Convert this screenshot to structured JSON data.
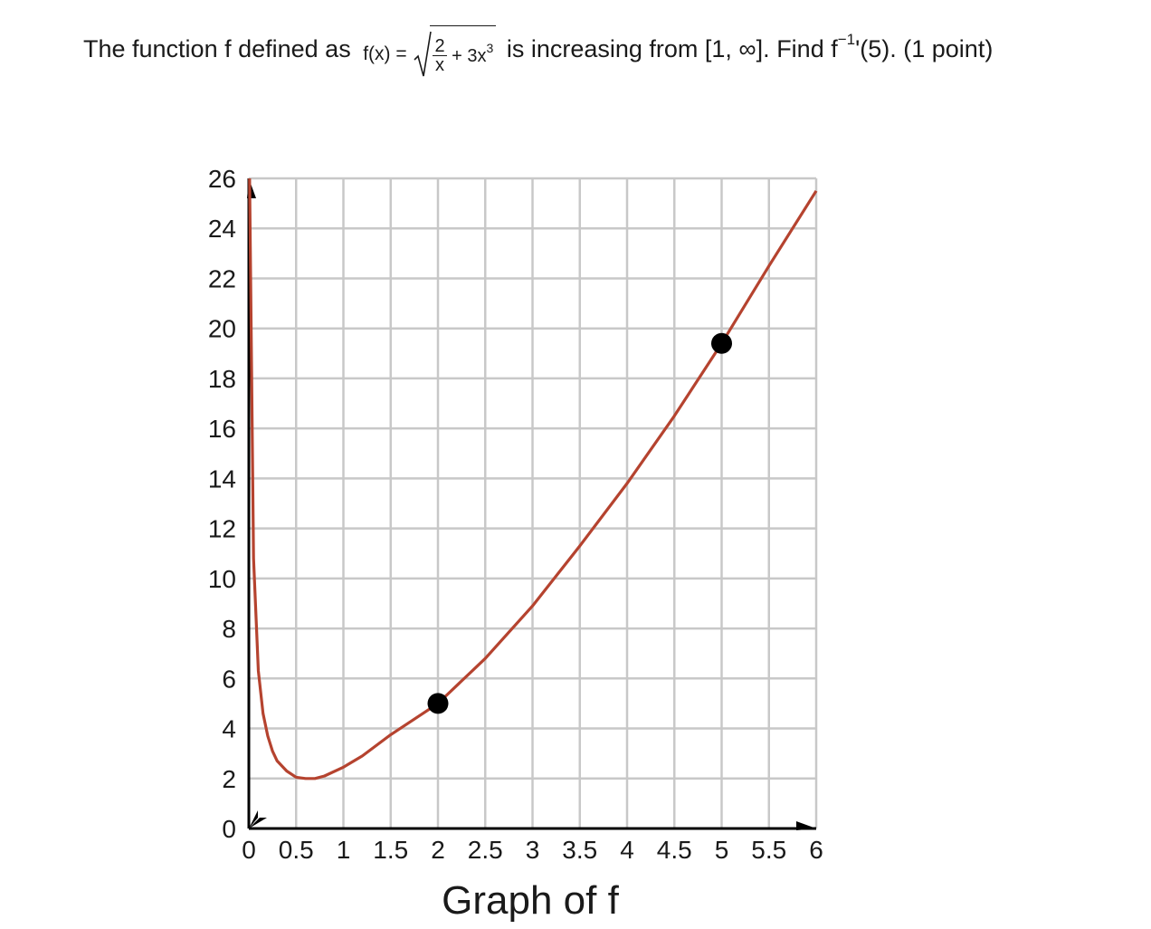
{
  "question": {
    "prefix": "The function f defined as",
    "fx_label": "f(x) =",
    "frac_num": "2",
    "frac_den": "x",
    "term": "+ 3x",
    "term_exp": "3",
    "middle": "is increasing from [1, ∞]. Find f",
    "inv_exp": "−1",
    "suffix": "'(5). (1 point)"
  },
  "chart_data": {
    "type": "line",
    "title": "Graph of f",
    "function": "sqrt(2/x) + 3x^3",
    "xlim": [
      0,
      6
    ],
    "ylim": [
      0,
      26
    ],
    "xticks": [
      "0",
      "0.5",
      "1",
      "1.5",
      "2",
      "2.5",
      "3",
      "3.5",
      "4",
      "4.5",
      "5",
      "5.5",
      "6"
    ],
    "yticks": [
      "0",
      "2",
      "4",
      "6",
      "8",
      "10",
      "12",
      "14",
      "16",
      "18",
      "20",
      "22",
      "24",
      "26"
    ],
    "x_grid_step": 0.5,
    "y_grid_step": 2,
    "grid": true,
    "series": [
      {
        "color": "#b5432f",
        "x": [
          0.05,
          0.1,
          0.15,
          0.2,
          0.25,
          0.3,
          0.4,
          0.5,
          0.6,
          0.7,
          0.8,
          1.0,
          1.2,
          1.5,
          2.0,
          2.5,
          3.0,
          3.5,
          4.0,
          4.5,
          5.0,
          5.5,
          6.0
        ],
        "y": [
          10.8,
          6.3,
          4.6,
          3.7,
          3.1,
          2.7,
          2.3,
          2.05,
          2.0,
          2.0,
          2.1,
          2.45,
          2.9,
          3.75,
          5.0,
          6.8,
          8.9,
          11.3,
          13.8,
          16.5,
          19.4,
          22.5,
          25.5
        ]
      }
    ],
    "points": [
      {
        "x": 2,
        "y": 5.0
      },
      {
        "x": 5,
        "y": 19.4
      }
    ],
    "point_color": "#000000"
  }
}
